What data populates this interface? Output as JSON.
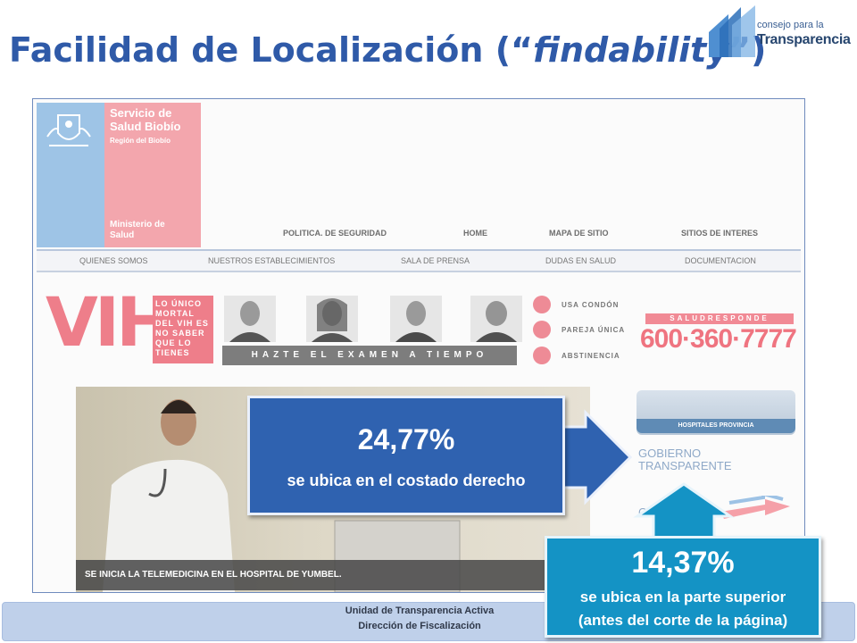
{
  "slide": {
    "title_prefix": "Facilidad de Localización (“",
    "title_italic": "findability",
    "title_suffix": "”)"
  },
  "logo": {
    "line1": "consejo para la",
    "line2": "Transparencia"
  },
  "website": {
    "header": {
      "org_name": "Servicio de Salud Biobío",
      "region": "Región del Biobío",
      "ministry": "Ministerio de Salud"
    },
    "top_nav": [
      "POLITICA. DE SEGURIDAD",
      "HOME",
      "MAPA DE SITIO",
      "SITIOS DE INTERES"
    ],
    "main_nav": [
      "QUIENES SOMOS",
      "NUESTROS ESTABLECIMIENTOS",
      "SALA DE PRENSA",
      "DUDAS EN SALUD",
      "DOCUMENTACION"
    ],
    "banner": {
      "vih": "VIH",
      "tagline": "LO ÚNICO MORTAL DEL VIH ES NO SABER QUE LO TIENES",
      "cta": "HAZTE EL EXAMEN A TIEMPO",
      "prevention": [
        "USA CONDÓN",
        "PAREJA ÚNICA",
        "ABSTINENCIA"
      ],
      "salud_responde": "SALUDRESPONDE",
      "phone": "600·360·7777"
    },
    "news_caption": "SE INICIA LA TELEMEDICINA EN EL HOSPITAL DE YUMBEL.",
    "side": {
      "hospitales": "HOSPITALES PROVINCIA",
      "gobierno_line1": "GOBIERNO",
      "gobierno_line2": "TRANSPARENTE",
      "partial": "CO"
    }
  },
  "callouts": {
    "right": {
      "percent": "24,77%",
      "text": "se ubica en el costado derecho"
    },
    "top": {
      "percent": "14,37%",
      "line1": "se ubica en la parte superior",
      "line2": "(antes del corte de la página)"
    }
  },
  "footer": {
    "line1": "Unidad de Transparencia Activa",
    "line2": "Dirección de Fiscalización"
  },
  "colors": {
    "title": "#2f5aa8",
    "callout_right": "#2f62b0",
    "callout_top": "#1493c5",
    "footer": "#bfd0ea",
    "pink": "#ee7e8a"
  }
}
